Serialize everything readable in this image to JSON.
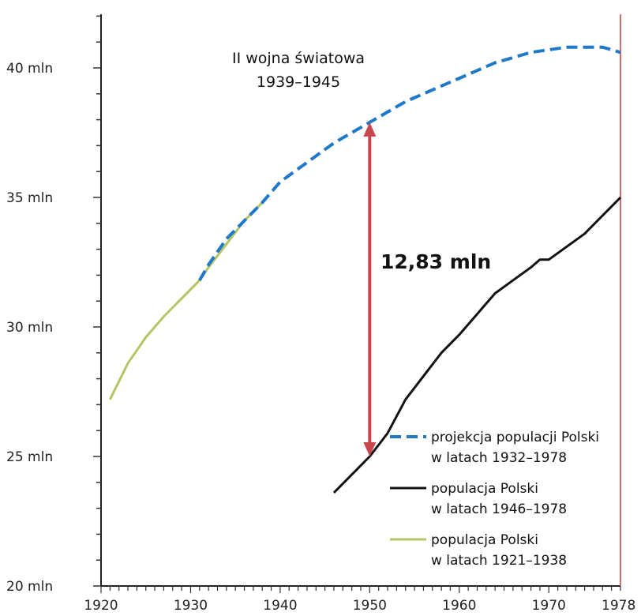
{
  "chart_data": {
    "type": "line",
    "title_lines": [
      "II wojna światowa",
      "1939–1945"
    ],
    "xlabel": "",
    "ylabel": "",
    "xlim": [
      1920,
      1978
    ],
    "ylim": [
      20,
      42
    ],
    "x_ticks": [
      1920,
      1930,
      1940,
      1950,
      1960,
      1970,
      1978
    ],
    "x_tick_labels": [
      "1920",
      "1930",
      "1940",
      "1950",
      "1960",
      "1970",
      "1978"
    ],
    "y_ticks": [
      20,
      25,
      30,
      35,
      40
    ],
    "y_tick_labels": [
      "20 mln",
      "25 mln",
      "30 mln",
      "35 mln",
      "40 mln"
    ],
    "highlight_year": 1978,
    "series": [
      {
        "name": "projekcja populacji Polski",
        "name_line2": "w latach 1932–1978",
        "color": "#1f78c8",
        "style": "dashed",
        "x": [
          1931,
          1932,
          1934,
          1936,
          1938,
          1940,
          1942,
          1944,
          1946,
          1948,
          1950,
          1952,
          1954,
          1956,
          1958,
          1960,
          1962,
          1964,
          1966,
          1968,
          1970,
          1972,
          1974,
          1976,
          1978
        ],
        "y": [
          31.8,
          32.4,
          33.4,
          34.1,
          34.8,
          35.6,
          36.1,
          36.6,
          37.1,
          37.5,
          37.9,
          38.3,
          38.7,
          39.0,
          39.3,
          39.6,
          39.9,
          40.2,
          40.4,
          40.6,
          40.7,
          40.8,
          40.8,
          40.8,
          40.6
        ]
      },
      {
        "name": "populacja Polski",
        "name_line2": "w latach 1946–1978",
        "color": "#111111",
        "style": "solid",
        "x": [
          1946,
          1948,
          1950,
          1952,
          1954,
          1956,
          1958,
          1960,
          1962,
          1964,
          1966,
          1968,
          1969,
          1970,
          1972,
          1974,
          1976,
          1978
        ],
        "y": [
          23.6,
          24.3,
          25.0,
          25.9,
          27.2,
          28.1,
          29.0,
          29.7,
          30.5,
          31.3,
          31.8,
          32.3,
          32.6,
          32.6,
          33.1,
          33.6,
          34.3,
          35.0
        ]
      },
      {
        "name": "populacja Polski",
        "name_line2": "w latach 1921–1938",
        "color": "#b5c465",
        "style": "solid",
        "x": [
          1921,
          1923,
          1925,
          1927,
          1929,
          1931,
          1932,
          1934,
          1936,
          1938
        ],
        "y": [
          27.2,
          28.6,
          29.6,
          30.4,
          31.1,
          31.8,
          32.3,
          33.2,
          34.1,
          34.8
        ]
      }
    ],
    "annotation": {
      "label": "12,83 mln",
      "x": 1950,
      "y_from": 25.0,
      "y_to": 37.9,
      "color": "#c8464e"
    },
    "legend_position": "bottom-right",
    "grid": false
  }
}
